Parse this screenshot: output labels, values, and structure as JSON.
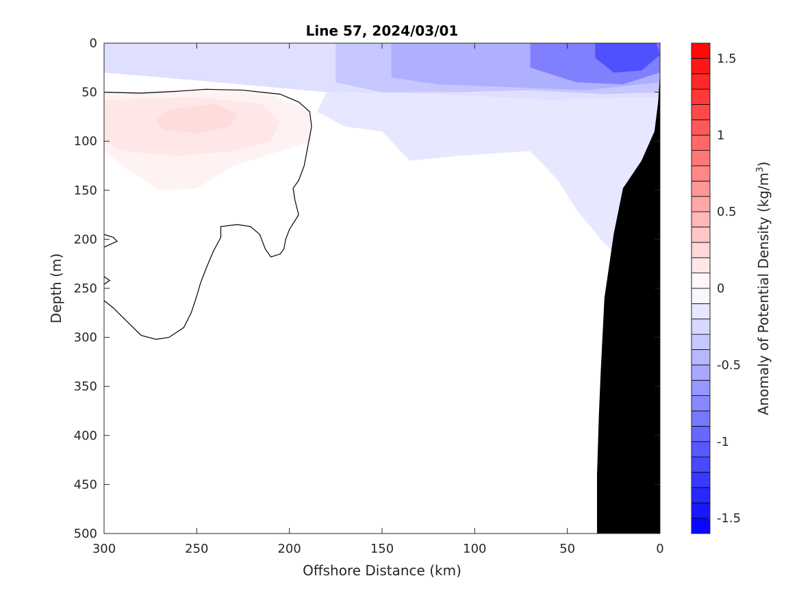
{
  "chart_data": {
    "type": "heatmap",
    "title": "Line 57, 2024/03/01",
    "xlabel": "Offshore Distance (km)",
    "ylabel": "Depth (m)",
    "colorbar_label_main": "Anomaly of Potential Density (kg/m",
    "colorbar_label_sup": "3",
    "colorbar_label_close": ")",
    "xlim": [
      300,
      0
    ],
    "ylim": [
      0,
      500
    ],
    "x_reversed": true,
    "y_reversed": true,
    "x_ticks": [
      300,
      250,
      200,
      150,
      100,
      50,
      0
    ],
    "y_ticks": [
      0,
      50,
      100,
      150,
      200,
      250,
      300,
      350,
      400,
      450,
      500
    ],
    "clim": [
      -1.6,
      1.6
    ],
    "colorbar_ticks": [
      1.5,
      1,
      0.5,
      0,
      -0.5,
      -1,
      -1.5
    ],
    "colorbar_step": 0.1,
    "colormap": {
      "negative": "#0000ff",
      "zero": "#ffffff",
      "positive": "#ff0000"
    },
    "zero_contour_color": "#000000",
    "bathymetry_color": "#000000",
    "regions": [
      {
        "name": "upper-blue-layer",
        "value": -0.2,
        "polygon": [
          [
            300,
            0
          ],
          [
            0,
            0
          ],
          [
            0,
            55
          ],
          [
            60,
            58
          ],
          [
            120,
            52
          ],
          [
            180,
            50
          ],
          [
            250,
            38
          ],
          [
            300,
            30
          ]
        ]
      },
      {
        "name": "mid-blue-layer",
        "value": -0.35,
        "polygon": [
          [
            175,
            0
          ],
          [
            0,
            0
          ],
          [
            0,
            50
          ],
          [
            30,
            52
          ],
          [
            70,
            48
          ],
          [
            110,
            50
          ],
          [
            150,
            50
          ],
          [
            175,
            40
          ]
        ]
      },
      {
        "name": "blue-core-upper",
        "value": -0.5,
        "polygon": [
          [
            145,
            0
          ],
          [
            0,
            0
          ],
          [
            0,
            40
          ],
          [
            40,
            48
          ],
          [
            80,
            45
          ],
          [
            120,
            42
          ],
          [
            145,
            35
          ]
        ]
      },
      {
        "name": "blue-core-deep",
        "value": -0.8,
        "polygon": [
          [
            70,
            0
          ],
          [
            0,
            0
          ],
          [
            0,
            30
          ],
          [
            20,
            42
          ],
          [
            45,
            40
          ],
          [
            70,
            25
          ]
        ]
      },
      {
        "name": "blue-maximum",
        "value": -1.1,
        "polygon": [
          [
            35,
            0
          ],
          [
            2,
            0
          ],
          [
            0,
            12
          ],
          [
            10,
            28
          ],
          [
            25,
            30
          ],
          [
            35,
            15
          ]
        ]
      },
      {
        "name": "shelf-blue-lower",
        "value": -0.15,
        "polygon": [
          [
            185,
            70
          ],
          [
            170,
            85
          ],
          [
            150,
            90
          ],
          [
            135,
            120
          ],
          [
            110,
            115
          ],
          [
            70,
            110
          ],
          [
            55,
            140
          ],
          [
            45,
            170
          ],
          [
            32,
            200
          ],
          [
            22,
            220
          ],
          [
            20,
            170
          ],
          [
            5,
            120
          ],
          [
            0,
            60
          ],
          [
            0,
            55
          ],
          [
            60,
            58
          ],
          [
            120,
            52
          ],
          [
            180,
            50
          ]
        ]
      },
      {
        "name": "positive-anomaly-outer",
        "value": 0.08,
        "polygon": [
          [
            300,
            50
          ],
          [
            240,
            47
          ],
          [
            210,
            52
          ],
          [
            190,
            68
          ],
          [
            188,
            100
          ],
          [
            205,
            110
          ],
          [
            230,
            125
          ],
          [
            250,
            148
          ],
          [
            270,
            150
          ],
          [
            290,
            125
          ],
          [
            300,
            110
          ]
        ]
      },
      {
        "name": "positive-anomaly-mid",
        "value": 0.15,
        "polygon": [
          [
            300,
            58
          ],
          [
            250,
            55
          ],
          [
            215,
            62
          ],
          [
            205,
            80
          ],
          [
            210,
            100
          ],
          [
            230,
            110
          ],
          [
            260,
            115
          ],
          [
            290,
            110
          ],
          [
            300,
            100
          ]
        ]
      },
      {
        "name": "positive-anomaly-core",
        "value": 0.22,
        "polygon": [
          [
            265,
            68
          ],
          [
            240,
            62
          ],
          [
            228,
            72
          ],
          [
            232,
            85
          ],
          [
            250,
            92
          ],
          [
            268,
            88
          ],
          [
            272,
            78
          ]
        ]
      }
    ],
    "zero_contour_lines": [
      [
        [
          300,
          50
        ],
        [
          280,
          51
        ],
        [
          260,
          49
        ],
        [
          245,
          47
        ],
        [
          225,
          48
        ],
        [
          205,
          52
        ],
        [
          195,
          60
        ],
        [
          189,
          70
        ],
        [
          188,
          85
        ],
        [
          190,
          105
        ],
        [
          192,
          125
        ],
        [
          195,
          140
        ],
        [
          198,
          148
        ],
        [
          197,
          160
        ],
        [
          195,
          175
        ],
        [
          200,
          190
        ],
        [
          202,
          200
        ],
        [
          203,
          210
        ],
        [
          205,
          215
        ],
        [
          210,
          218
        ],
        [
          213,
          210
        ],
        [
          216,
          195
        ],
        [
          221,
          187
        ],
        [
          228,
          185
        ],
        [
          237,
          187
        ],
        [
          237,
          198
        ],
        [
          239,
          205
        ],
        [
          241,
          212
        ],
        [
          245,
          230
        ],
        [
          248,
          245
        ],
        [
          250,
          258
        ],
        [
          253,
          275
        ],
        [
          257,
          290
        ],
        [
          265,
          300
        ],
        [
          272,
          302
        ],
        [
          280,
          298
        ],
        [
          287,
          285
        ],
        [
          295,
          270
        ],
        [
          305,
          255
        ]
      ],
      [
        [
          300,
          195
        ],
        [
          295,
          198
        ],
        [
          293,
          202
        ],
        [
          300,
          208
        ]
      ],
      [
        [
          300,
          238
        ],
        [
          297,
          242
        ],
        [
          300,
          246
        ]
      ]
    ],
    "bathymetry": [
      [
        0,
        30
      ],
      [
        1,
        60
      ],
      [
        3,
        90
      ],
      [
        10,
        120
      ],
      [
        20,
        148
      ],
      [
        25,
        195
      ],
      [
        30,
        260
      ],
      [
        32,
        335
      ],
      [
        33,
        380
      ],
      [
        34,
        440
      ],
      [
        34,
        500
      ],
      [
        0,
        500
      ]
    ]
  }
}
